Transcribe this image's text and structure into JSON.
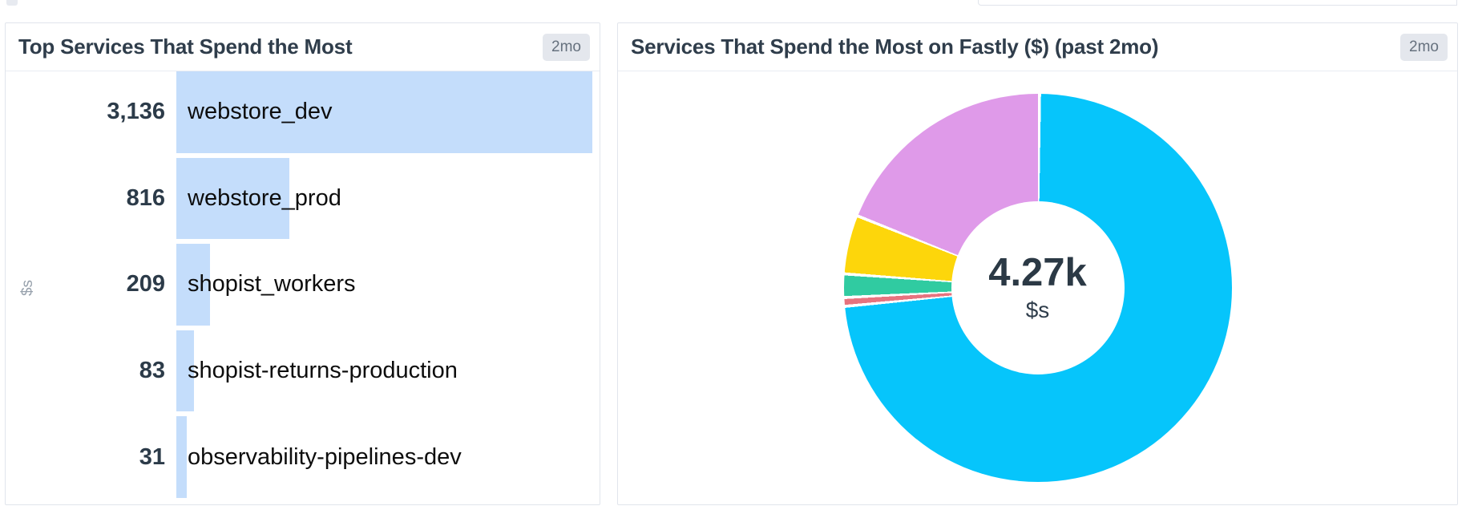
{
  "panels": {
    "bar_panel": {
      "title": "Top Services That Spend the Most",
      "badge": "2mo",
      "y_axis_label": "$s"
    },
    "donut_panel": {
      "title": "Services That Spend the Most on Fastly ($) (past 2mo)",
      "badge": "2mo",
      "center_value": "4.27k",
      "center_unit": "$s"
    }
  },
  "colors": {
    "bar_fill": "#c4ddfb",
    "cyan": "#06c5fb",
    "magenta": "#df9ae9",
    "yellow": "#fdd60b",
    "green": "#30cba1",
    "pink": "#e7737f"
  },
  "chart_data": [
    {
      "type": "bar",
      "orientation": "horizontal",
      "title": "Top Services That Spend the Most",
      "time_range": "2mo",
      "ylabel": "$s",
      "xlabel": "",
      "categories": [
        "webstore_dev",
        "webstore_prod",
        "shopist_workers",
        "shopist-returns-production",
        "observability-pipelines-dev"
      ],
      "values": [
        3136,
        816,
        209,
        83,
        31
      ],
      "value_labels": [
        "3,136",
        "816",
        "209",
        "83",
        "31"
      ],
      "xlim": [
        0,
        3136
      ],
      "grid": false,
      "legend": "none",
      "bar_color": "#c4ddfb"
    },
    {
      "type": "pie",
      "subtype": "donut",
      "title": "Services That Spend the Most on Fastly ($) (past 2mo)",
      "time_range": "2mo",
      "total": 4275,
      "total_label": "4.27k",
      "unit": "$s",
      "legend": "none",
      "slice_order": "clockwise-from-12-oclock",
      "slices": [
        {
          "label": "webstore_dev",
          "value": 3136,
          "color": "#06c5fb"
        },
        {
          "label": "observability-pipelines-dev",
          "value": 31,
          "color": "#e7737f"
        },
        {
          "label": "shopist-returns-production",
          "value": 83,
          "color": "#30cba1"
        },
        {
          "label": "shopist_workers",
          "value": 209,
          "color": "#fdd60b"
        },
        {
          "label": "webstore_prod",
          "value": 816,
          "color": "#df9ae9"
        }
      ]
    }
  ]
}
